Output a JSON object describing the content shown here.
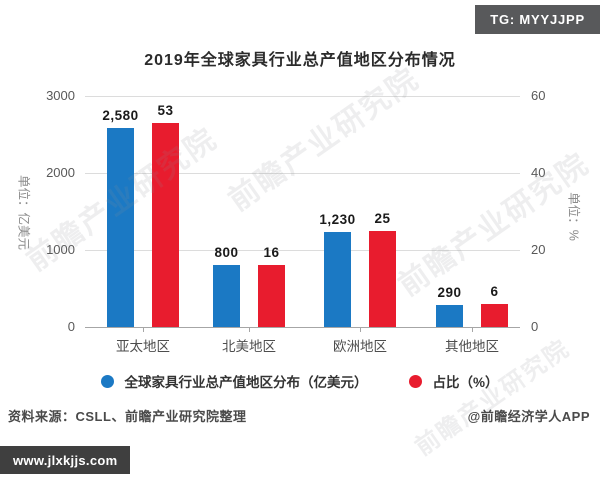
{
  "badges": {
    "top_right": "TG: MYYJJPP",
    "bottom_left": "www.jlxkjjs.com"
  },
  "title": "2019年全球家具行业总产值地区分布情况",
  "watermark_text": "前瞻产业研究院",
  "chart_data": {
    "type": "bar",
    "title": "2019年全球家具行业总产值地区分布情况",
    "categories": [
      "亚太地区",
      "北美地区",
      "欧洲地区",
      "其他地区"
    ],
    "series": [
      {
        "name": "全球家具行业总产值地区分布（亿美元）",
        "axis": "left",
        "color": "#1b79c4",
        "values": [
          2580,
          800,
          1230,
          290
        ],
        "value_labels": [
          "2,580",
          "800",
          "1,230",
          "290"
        ]
      },
      {
        "name": "占比（%）",
        "axis": "right",
        "color": "#e81c2e",
        "values": [
          53,
          16,
          25,
          6
        ],
        "value_labels": [
          "53",
          "16",
          "25",
          "6"
        ]
      }
    ],
    "left_axis": {
      "label": "单位：亿美元",
      "ticks": [
        3000,
        2000,
        1000,
        0
      ],
      "ylim": [
        0,
        3000
      ]
    },
    "right_axis": {
      "label": "单位：%",
      "ticks": [
        60,
        40,
        20,
        0
      ],
      "ylim": [
        0,
        60
      ]
    },
    "grid": true,
    "legend_position": "bottom"
  },
  "footer": {
    "source": "资料来源：CSLL、前瞻产业研究院整理",
    "credit": "@前瞻经济学人APP"
  }
}
